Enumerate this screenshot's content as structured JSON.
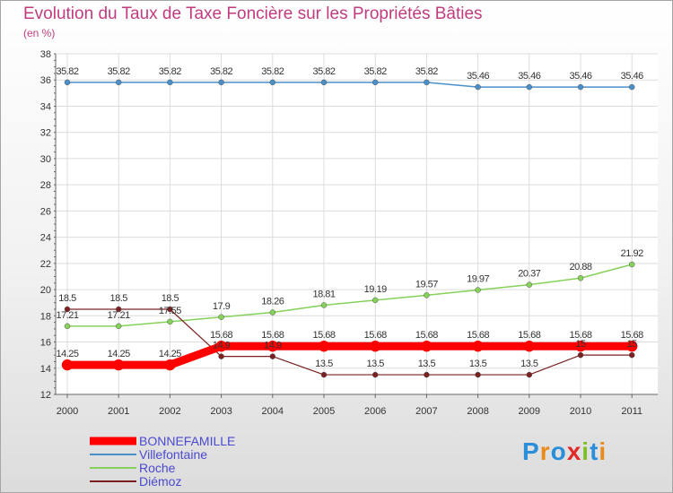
{
  "header": {
    "title": "Evolution du Taux de Taxe Foncière sur les Propriétés Bâties",
    "subtitle": "(en %)"
  },
  "logo": {
    "letters": [
      "P",
      "r",
      "o",
      "x",
      "i",
      "t",
      "i"
    ],
    "colors": [
      "#2b8ed8",
      "#e98a1c",
      "#2b8ed8",
      "#e02a2a",
      "#7cbf2a",
      "#2b8ed8",
      "#e98a1c"
    ]
  },
  "chart_data": {
    "type": "line",
    "title": "Evolution du Taux de Taxe Foncière sur les Propriétés Bâties",
    "ylabel": "(en %)",
    "ylim": [
      12,
      38
    ],
    "yticks": [
      12,
      14,
      16,
      18,
      20,
      22,
      24,
      26,
      28,
      30,
      32,
      34,
      36,
      38
    ],
    "grid": true,
    "legend_position": "bottom-left",
    "categories": [
      "2000",
      "2001",
      "2002",
      "2003",
      "2004",
      "2005",
      "2006",
      "2007",
      "2008",
      "2009",
      "2010",
      "2011"
    ],
    "series": [
      {
        "name": "Villefontaine",
        "color": "#4a8fc8",
        "values": [
          35.82,
          35.82,
          35.82,
          35.82,
          35.82,
          35.82,
          35.82,
          35.82,
          35.46,
          35.46,
          35.46,
          35.46
        ],
        "labels": [
          "35.82",
          "35.82",
          "35.82",
          "35.82",
          "35.82",
          "35.82",
          "35.82",
          "35.82",
          "35.46",
          "35.46",
          "35.46",
          "35.46"
        ]
      },
      {
        "name": "Roche",
        "color": "#86d15a",
        "values": [
          17.21,
          17.21,
          17.55,
          17.9,
          18.26,
          18.81,
          19.19,
          19.57,
          19.97,
          20.37,
          20.88,
          21.92
        ],
        "labels": [
          "17.21",
          "17.21",
          "17.55",
          "17.9",
          "18.26",
          "18.81",
          "19.19",
          "19.57",
          "19.97",
          "20.37",
          "20.88",
          "21.92"
        ]
      },
      {
        "name": "Diémoz",
        "color": "#7a2020",
        "values": [
          18.5,
          18.5,
          18.5,
          14.9,
          14.9,
          13.5,
          13.5,
          13.5,
          13.5,
          13.5,
          15,
          15
        ],
        "labels": [
          "18.5",
          "18.5",
          "18.5",
          "14.9",
          "14.9",
          "13.5",
          "13.5",
          "13.5",
          "13.5",
          "13.5",
          "15",
          "15"
        ]
      },
      {
        "name": "BONNEFAMILLE",
        "color": "#ff0000",
        "values": [
          14.25,
          14.25,
          14.25,
          15.68,
          15.68,
          15.68,
          15.68,
          15.68,
          15.68,
          15.68,
          15.68,
          15.68
        ],
        "labels": [
          "14.25",
          "14.25",
          "14.25",
          "15.68",
          "15.68",
          "15.68",
          "15.68",
          "15.68",
          "15.68",
          "15.68",
          "15.68",
          "15.68"
        ]
      }
    ],
    "legend": [
      "BONNEFAMILLE",
      "Villefontaine",
      "Roche",
      "Diémoz"
    ]
  }
}
